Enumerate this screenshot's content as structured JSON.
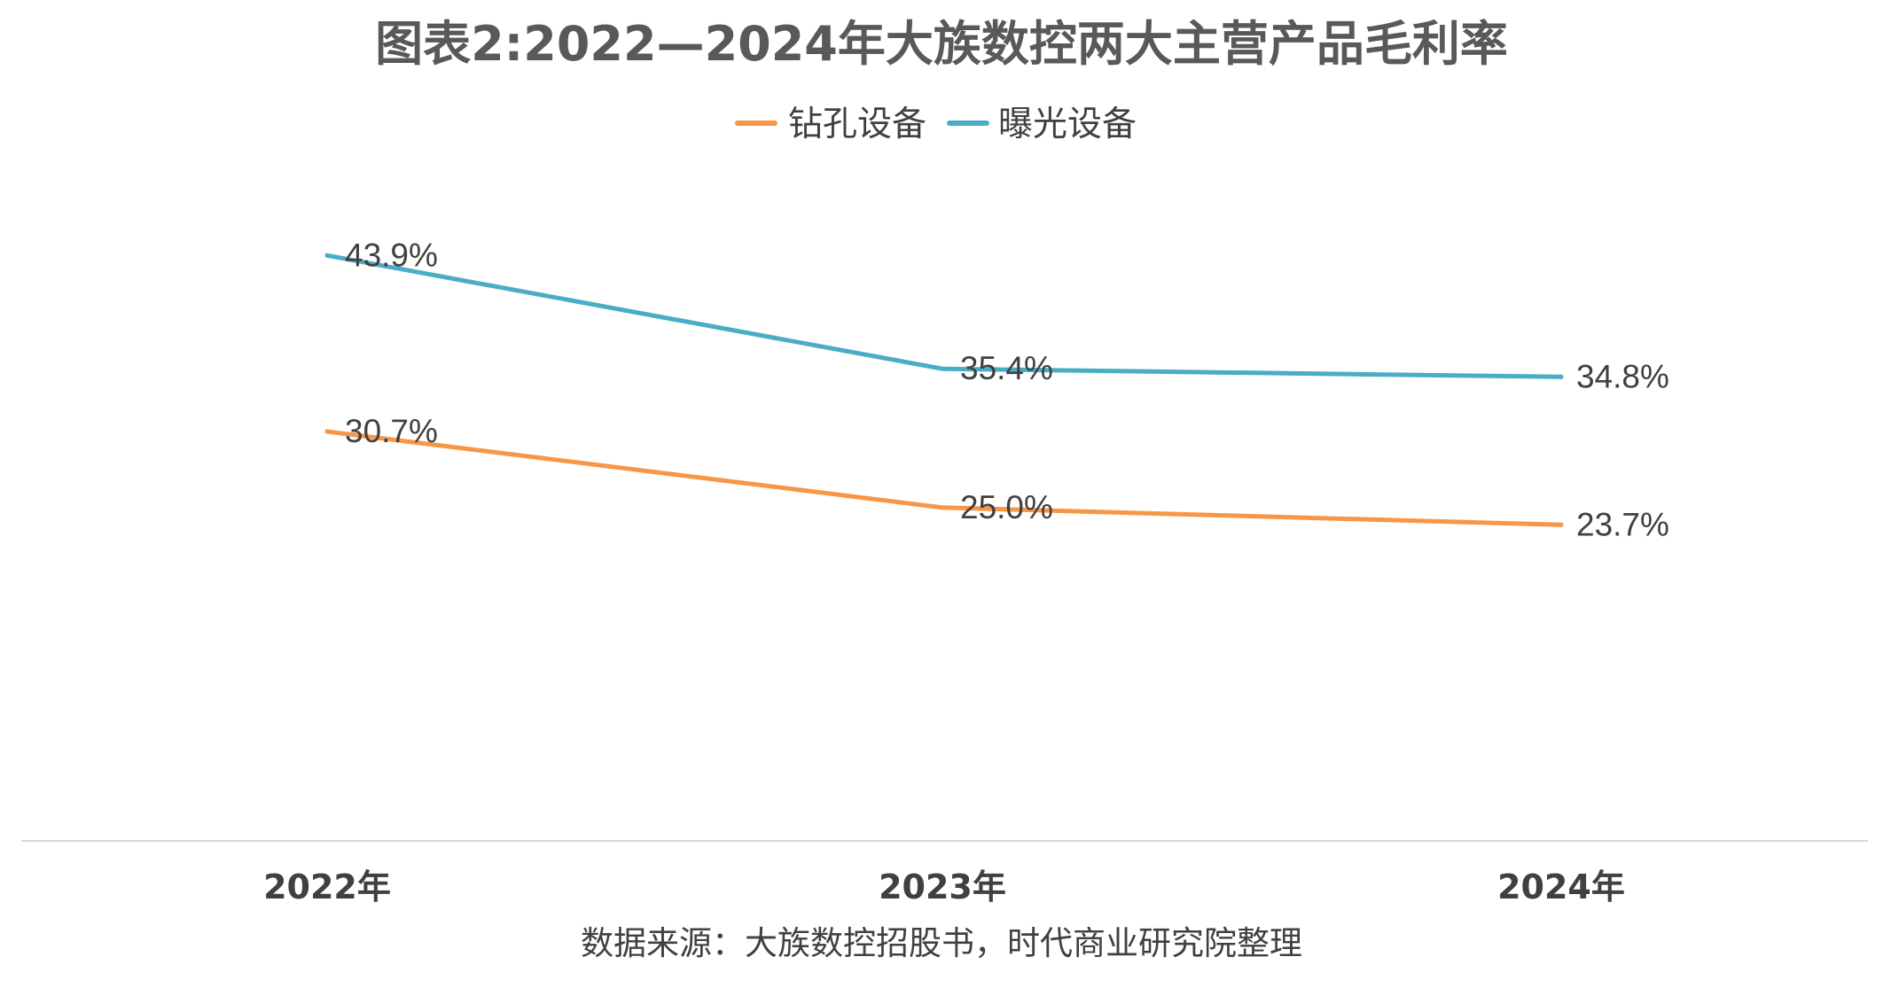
{
  "chart_data": {
    "type": "line",
    "title": "图表2:2022—2024年大族数控两大主营产品毛利率",
    "categories": [
      "2022年",
      "2023年",
      "2024年"
    ],
    "series": [
      {
        "name": "钻孔设备",
        "color": "#F79646",
        "values": [
          30.7,
          25.0,
          23.7
        ],
        "labels": [
          "30.7%",
          "25.0%",
          "23.7%"
        ]
      },
      {
        "name": "曝光设备",
        "color": "#4BACC6",
        "values": [
          43.9,
          35.4,
          34.8
        ],
        "labels": [
          "43.9%",
          "35.4%",
          "34.8%"
        ]
      }
    ],
    "xlabel": "",
    "ylabel": "",
    "ylim": [
      0,
      50
    ],
    "grid": false,
    "legend_position": "top",
    "source": "数据来源：大族数控招股书，时代商业研究院整理"
  }
}
